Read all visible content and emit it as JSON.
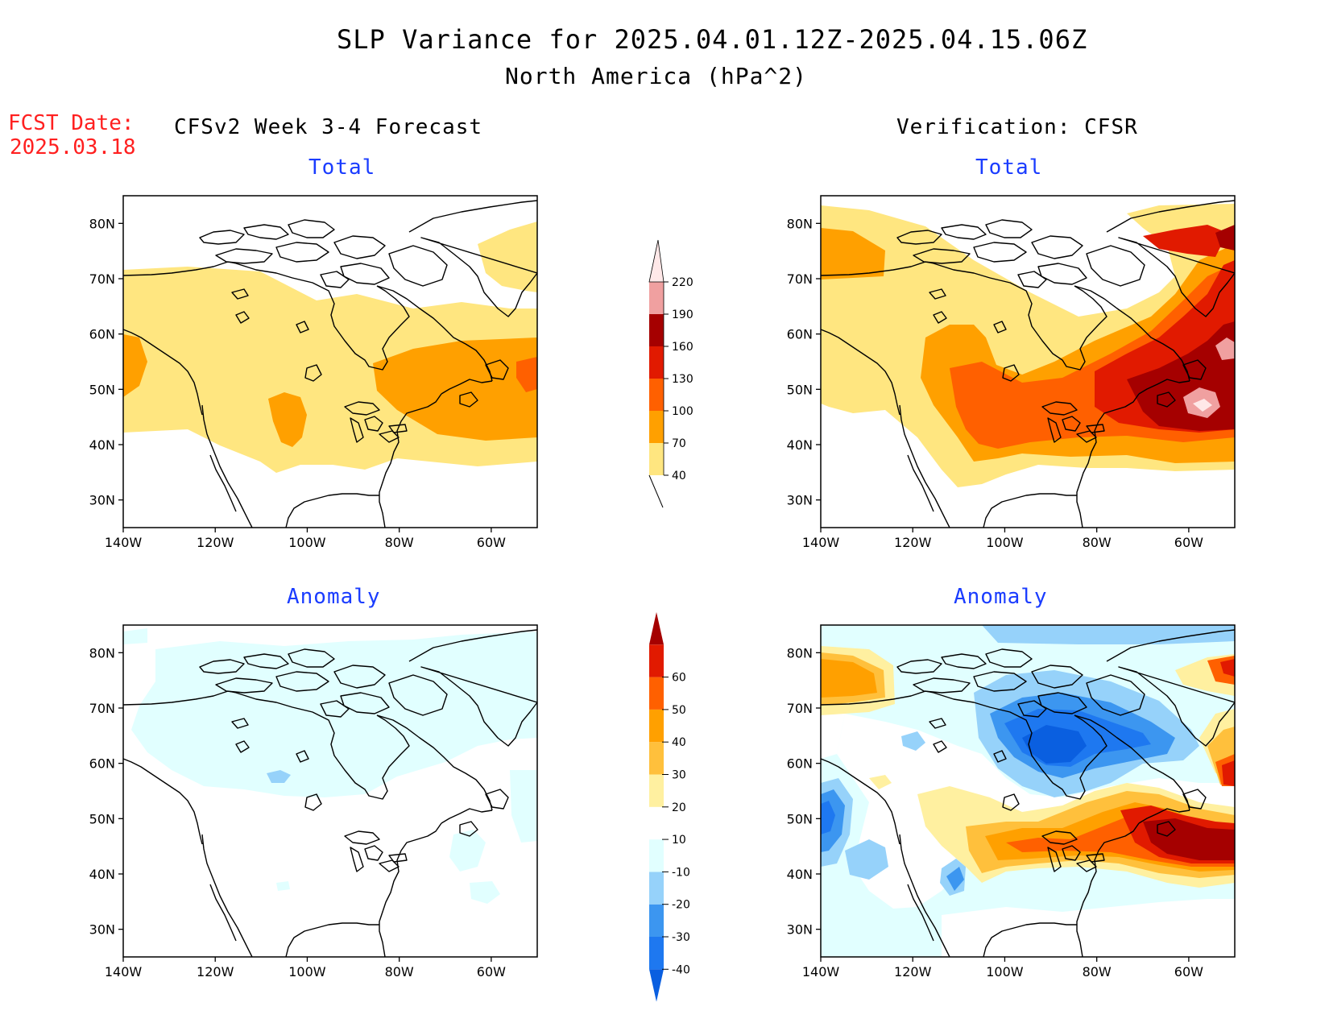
{
  "header": {
    "title": "SLP Variance for 2025.04.01.12Z-2025.04.15.06Z",
    "subtitle": "North America (hPa^2)"
  },
  "fcst": {
    "label": "FCST Date:",
    "date": "2025.03.18"
  },
  "columns": {
    "left": "CFSv2 Week 3-4 Forecast",
    "right": "Verification: CFSR"
  },
  "panels": {
    "fc_total": {
      "title": "Total"
    },
    "vf_total": {
      "title": "Total"
    },
    "fc_anom": {
      "title": "Anomaly"
    },
    "vf_anom": {
      "title": "Anomaly"
    }
  },
  "axes": {
    "lat_labels": [
      "80N",
      "70N",
      "60N",
      "50N",
      "40N",
      "30N"
    ],
    "lon_labels": [
      "140W",
      "120W",
      "100W",
      "80W",
      "60W"
    ],
    "lat_values": [
      80,
      70,
      60,
      50,
      40,
      30
    ],
    "lon_values": [
      -140,
      -120,
      -100,
      -80,
      -60
    ],
    "lat_range": [
      25,
      85
    ],
    "lon_range": [
      -140,
      -50
    ]
  },
  "colorbars": {
    "total": {
      "levels": [
        "40",
        "70",
        "100",
        "130",
        "160",
        "190",
        "220"
      ],
      "colors": [
        "#ffe680",
        "#ffa000",
        "#ff6000",
        "#e11a00",
        "#a50000",
        "#f0a0a0",
        "#ffe8e8"
      ]
    },
    "anomaly": {
      "levels": [
        "-40",
        "-30",
        "-20",
        "-10",
        "10",
        "20",
        "30",
        "40",
        "50",
        "60"
      ],
      "colors": [
        "#0a5fe0",
        "#1e78f0",
        "#3c96f0",
        "#96d2fa",
        "#e1ffff",
        "#ffffff",
        "#fff0a0",
        "#ffc03c",
        "#ffa000",
        "#ff6000",
        "#e11a00",
        "#a50000"
      ]
    }
  }
}
